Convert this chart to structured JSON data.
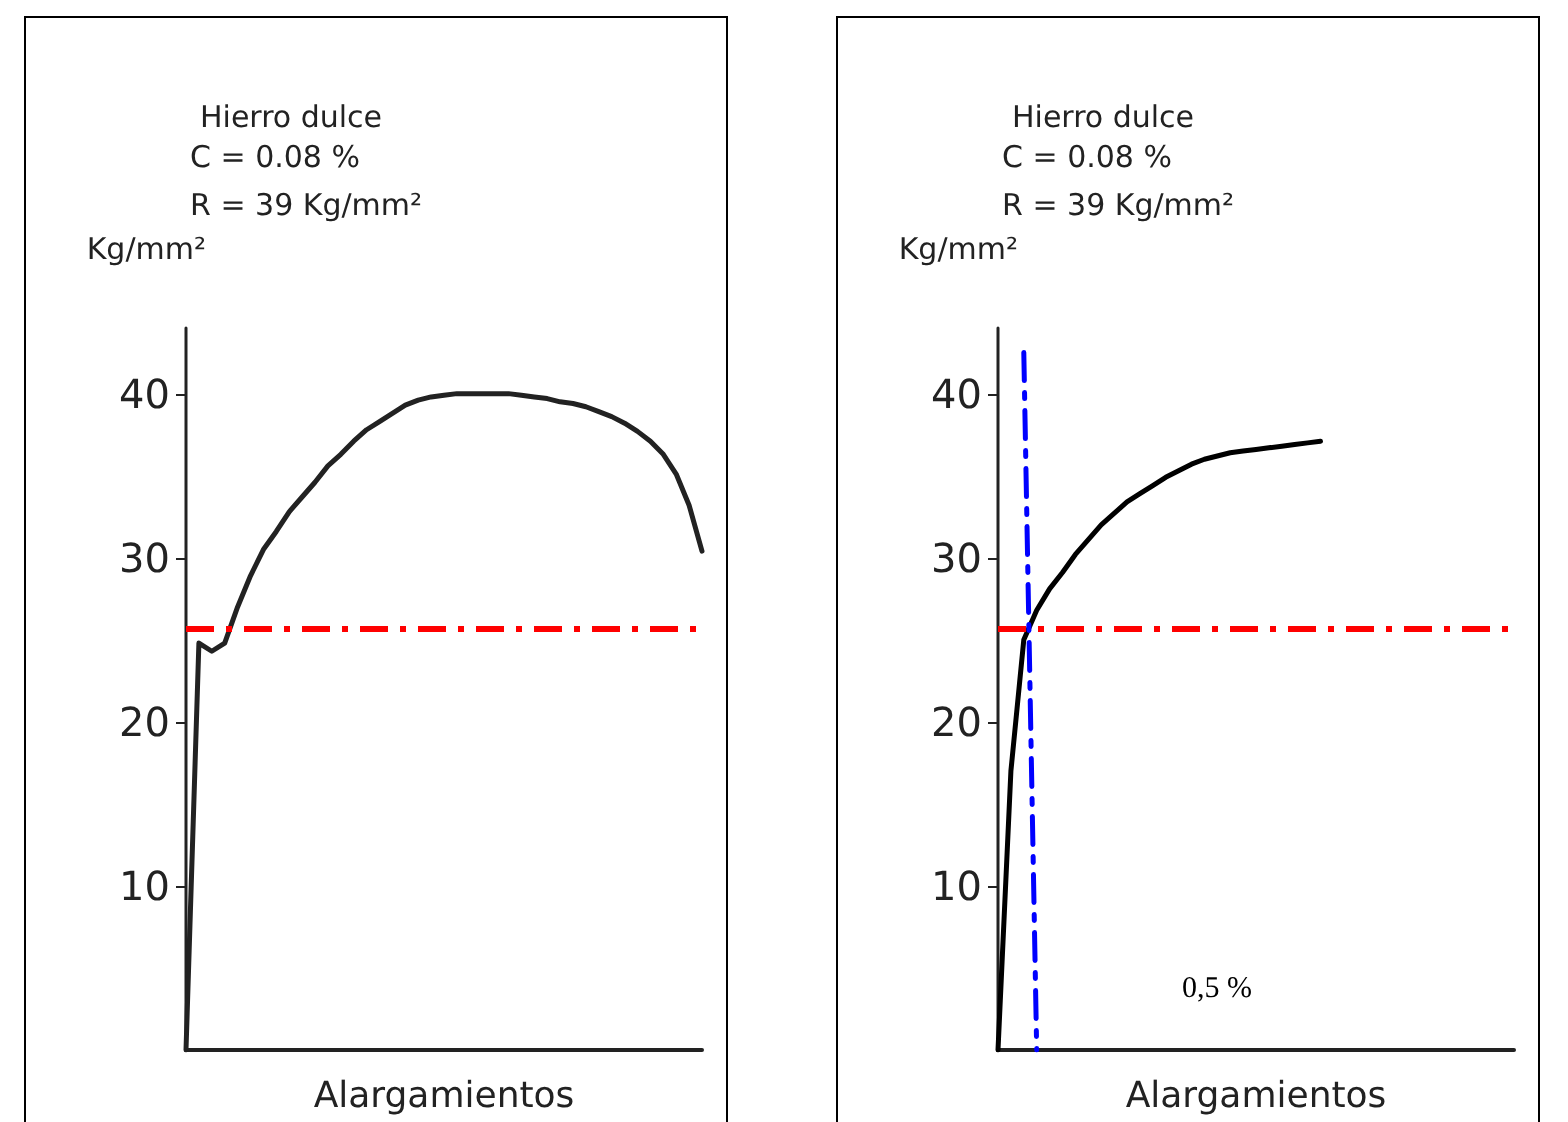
{
  "chart_data": [
    {
      "type": "line",
      "title": "Hierro dulce",
      "annotations": [
        "C = 0.08 %",
        "R = 39 Kg/mm²"
      ],
      "ylabel": "Kg/mm²",
      "xlabel": "Alargamientos",
      "categories": [
        null,
        null,
        null,
        null,
        null,
        null,
        null,
        null,
        null,
        null,
        null,
        null,
        null,
        null,
        null,
        null,
        null,
        null,
        null,
        null,
        null,
        null,
        null,
        null,
        null,
        null,
        null,
        null,
        null,
        null,
        null,
        null,
        null,
        null,
        null,
        null,
        null,
        null,
        null,
        null,
        null
      ],
      "series": [
        {
          "color": "#222222",
          "line_style": "solid",
          "values": [
            0,
            24.8,
            24.3,
            24.8,
            27.0,
            28.9,
            30.5,
            31.6,
            32.8,
            33.7,
            34.6,
            35.6,
            36.3,
            37.1,
            37.8,
            38.3,
            38.8,
            39.3,
            39.6,
            39.8,
            39.9,
            40,
            40,
            40,
            40,
            40,
            39.9,
            39.8,
            39.7,
            39.5,
            39.4,
            39.2,
            38.9,
            38.6,
            38.2,
            37.7,
            37.1,
            36.3,
            35.1,
            33.2,
            30.4
          ]
        }
      ],
      "ylim": [
        0,
        44
      ],
      "yticks": [
        10,
        20,
        30,
        40
      ],
      "tick_labels": "y",
      "grid": false,
      "ref_lines": [
        {
          "axis": "y",
          "value": 25.7,
          "label": null,
          "color": "#ff0000",
          "line_style": "dashed"
        }
      ]
    },
    {
      "type": "line",
      "title": "Hierro dulce",
      "annotations": [
        "C = 0.08 %",
        "R = 39 Kg/mm²",
        "0,5 %"
      ],
      "ylabel": "Kg/mm²",
      "xlabel": "Alargamientos",
      "categories": [
        null,
        null,
        null,
        null,
        null,
        null,
        null,
        null,
        null,
        null,
        null,
        null,
        null,
        null,
        null,
        null,
        null,
        null,
        null,
        null,
        null,
        null,
        null,
        null,
        null,
        null,
        null,
        null,
        null,
        null,
        null,
        null,
        null,
        null,
        null,
        null,
        null,
        null,
        null,
        null,
        null
      ],
      "series": [
        {
          "color": "#000000",
          "line_style": "solid",
          "values": [
            0,
            17,
            25,
            26.8,
            28.1,
            29.1,
            30.2,
            31.1,
            32.0,
            32.7,
            33.4,
            33.9,
            34.4,
            34.9,
            35.3,
            35.7,
            36.0,
            36.2,
            36.4,
            36.5,
            36.6,
            36.7,
            36.8,
            36.9,
            37.0,
            37.1,
            null,
            null,
            null,
            null,
            null,
            null,
            null,
            null,
            null,
            null,
            null,
            null,
            null,
            null,
            null
          ]
        },
        {
          "color": "#0000ff",
          "line_style": "dashed",
          "values": [
            null,
            null,
            42.5,
            0,
            null,
            null,
            null,
            null,
            null,
            null,
            null,
            null,
            null,
            null,
            null,
            null,
            null,
            null,
            null,
            null,
            null,
            null,
            null,
            null,
            null,
            null,
            null,
            null,
            null,
            null,
            null,
            null,
            null,
            null,
            null,
            null,
            null,
            null,
            null,
            null,
            null
          ]
        }
      ],
      "ylim": [
        0,
        44
      ],
      "yticks": [
        10,
        20,
        30,
        40
      ],
      "tick_labels": "y",
      "grid": false,
      "ref_lines": [
        {
          "axis": "y",
          "value": 25.7,
          "label": null,
          "color": "#ff0000",
          "line_style": "dashed"
        }
      ]
    }
  ]
}
